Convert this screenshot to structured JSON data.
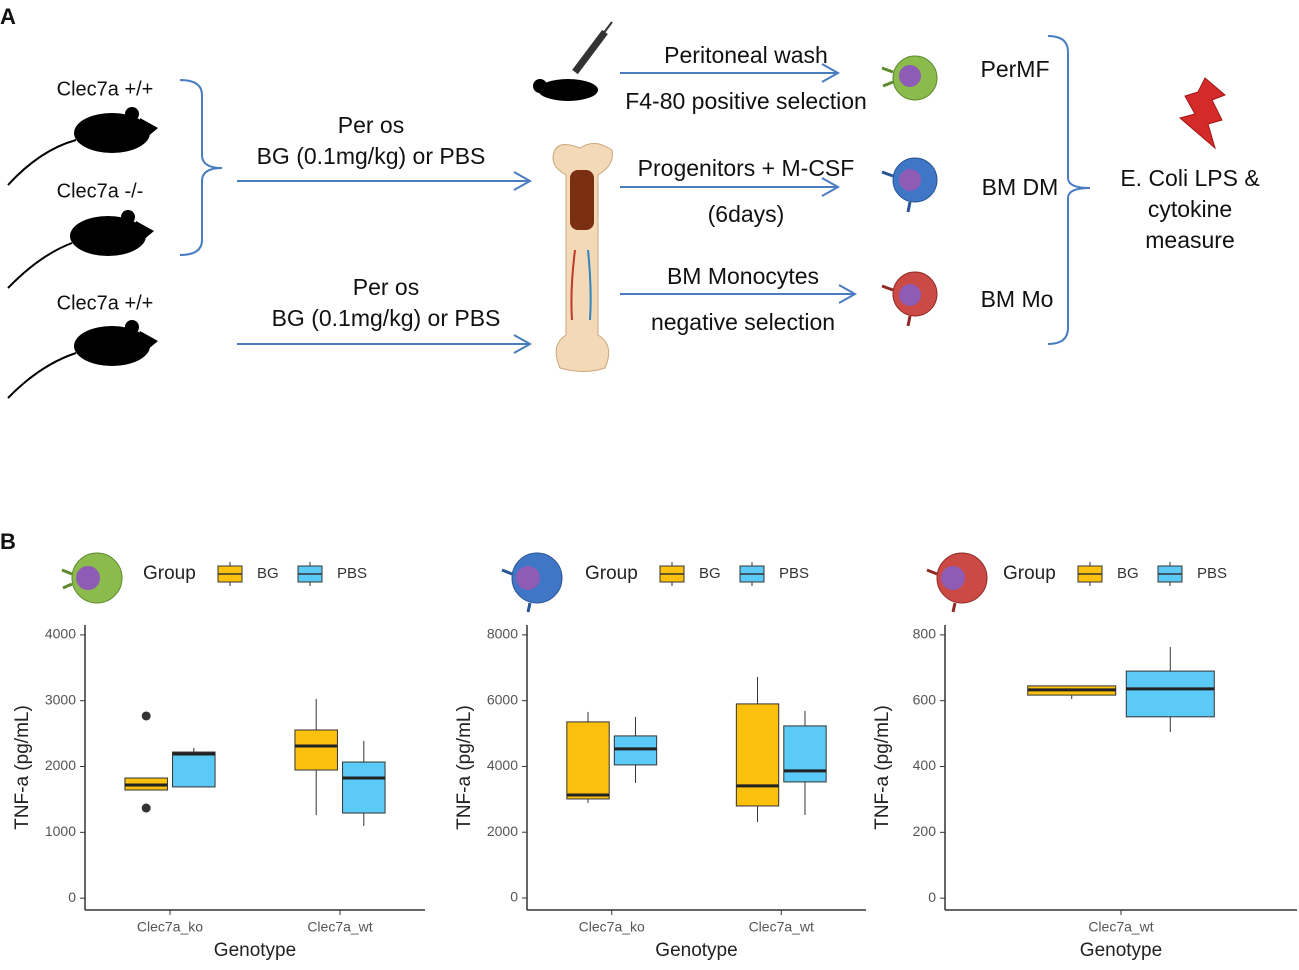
{
  "panel_a": {
    "label": "A",
    "mice": [
      "Clec7a +/+",
      "Clec7a -/-",
      "Clec7a +/+"
    ],
    "routes": [
      {
        "line1": "Per os",
        "line2": "BG (0.1mg/kg) or PBS"
      },
      {
        "line1": "Per os",
        "line2": "BG (0.1mg/kg) or PBS"
      }
    ],
    "steps": [
      {
        "above": "Peritoneal wash",
        "below": "F4-80 positive selection"
      },
      {
        "above": "Progenitors + M-CSF",
        "below": "(6days)"
      },
      {
        "above": "BM Monocytes",
        "below": "negative selection"
      }
    ],
    "cells": [
      "PerMF",
      "BM DM",
      "BM Mo"
    ],
    "readout": [
      "E. Coli LPS &",
      "cytokine",
      "measure"
    ]
  },
  "panel_b": {
    "label": "B"
  },
  "chart_data": [
    {
      "type": "box",
      "ylabel": "TNF-a (pg/mL)",
      "xlabel": "Genotype",
      "legend_title": "Group",
      "categories": [
        "Clec7a_ko",
        "Clec7a_wt"
      ],
      "ylim": [
        -180,
        4150
      ],
      "yticks": [
        0,
        1000,
        2000,
        3000,
        4000
      ],
      "series": [
        {
          "name": "BG",
          "color": "#fcc00e",
          "values": [
            {
              "low": 1640,
              "q1": 1643,
              "median": 1719,
              "q3": 1825,
              "high": 1830,
              "outliers": [
                2768,
                1369
              ]
            },
            {
              "low": 1262,
              "q1": 1947,
              "median": 2312,
              "q3": 2555,
              "high": 3027
            }
          ]
        },
        {
          "name": "PBS",
          "color": "#5ccaf6",
          "values": [
            {
              "low": 1688,
              "q1": 1690,
              "median": 2190,
              "q3": 2220,
              "high": 2281
            },
            {
              "low": 1095,
              "q1": 1293,
              "median": 1825,
              "q3": 2068,
              "high": 2388
            }
          ]
        }
      ]
    },
    {
      "type": "box",
      "ylabel": "TNF-a (pg/mL)",
      "xlabel": "Genotype",
      "legend_title": "Group",
      "categories": [
        "Clec7a_ko",
        "Clec7a_wt"
      ],
      "ylim": [
        -365,
        8300
      ],
      "yticks": [
        0,
        2000,
        4000,
        6000,
        8000
      ],
      "series": [
        {
          "name": "BG",
          "color": "#fcc00e",
          "values": [
            {
              "low": 2890,
              "q1": 3011,
              "median": 3133,
              "q3": 5354,
              "high": 5658
            },
            {
              "low": 2312,
              "q1": 2798,
              "median": 3407,
              "q3": 5901,
              "high": 6722
            }
          ]
        },
        {
          "name": "PBS",
          "color": "#5ccaf6",
          "values": [
            {
              "low": 3498,
              "q1": 4046,
              "median": 4532,
              "q3": 4928,
              "high": 5506
            },
            {
              "low": 2525,
              "q1": 3529,
              "median": 3863,
              "q3": 5232,
              "high": 5688
            }
          ]
        }
      ]
    },
    {
      "type": "box",
      "ylabel": "TNF-a (pg/mL)",
      "xlabel": "Genotype",
      "legend_title": "Group",
      "categories": [
        "Clec7a_wt"
      ],
      "ylim": [
        -36,
        830
      ],
      "yticks": [
        0,
        200,
        400,
        600,
        800
      ],
      "series": [
        {
          "name": "BG",
          "color": "#fcc00e",
          "values": [
            {
              "low": 605,
              "q1": 617,
              "median": 633,
              "q3": 645,
              "high": 646
            }
          ]
        },
        {
          "name": "PBS",
          "color": "#5ccaf6",
          "values": [
            {
              "low": 505,
              "q1": 551,
              "median": 636,
              "q3": 690,
              "high": 763
            }
          ]
        }
      ]
    }
  ]
}
